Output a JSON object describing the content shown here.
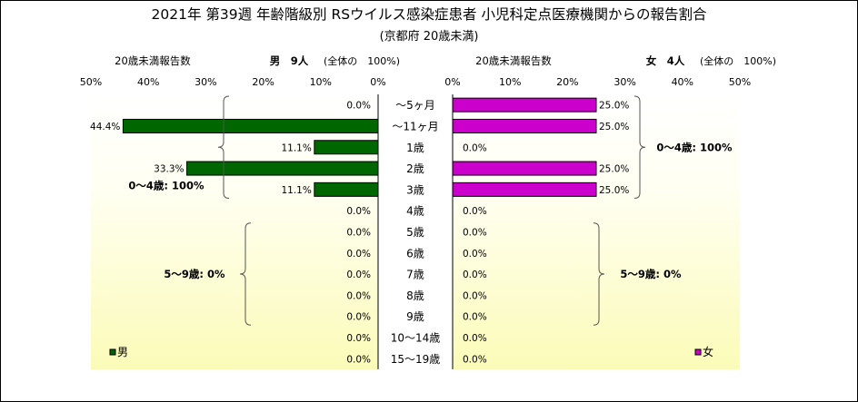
{
  "chart_data": {
    "type": "bar",
    "title": "2021年 第39週 年齢階級別 RSウイルス感染症患者 小児科定点医療機関からの報告割合",
    "subtitle": "(京都府 20歳未満)",
    "categories": [
      "～5ヶ月",
      "～11ヶ月",
      "1歳",
      "2歳",
      "3歳",
      "4歳",
      "5歳",
      "6歳",
      "7歳",
      "8歳",
      "9歳",
      "10～14歳",
      "15～19歳"
    ],
    "x_ticks": [
      "50%",
      "40%",
      "30%",
      "20%",
      "10%",
      "0%"
    ],
    "x_ticks_right": [
      "0%",
      "10%",
      "20%",
      "30%",
      "40%",
      "50%"
    ],
    "xlim": [
      0,
      50
    ],
    "series": [
      {
        "name": "男",
        "header_label": "20歳未満報告数",
        "header_value": "男　9人",
        "header_note": "(全体の　100%)",
        "color": "#006600",
        "values": [
          0,
          44.4,
          11.1,
          33.3,
          11.1,
          0,
          0,
          0,
          0,
          0,
          0,
          0,
          0
        ],
        "value_labels": [
          "0.0%",
          "44.4%",
          "11.1%",
          "33.3%",
          "11.1%",
          "0.0%",
          "0.0%",
          "0.0%",
          "0.0%",
          "0.0%",
          "0.0%",
          "0.0%",
          "0.0%"
        ],
        "groups": [
          {
            "label": "0～4歳: 100%",
            "from": 0,
            "to": 4
          },
          {
            "label": "5～9歳: 0%",
            "from": 6,
            "to": 10
          }
        ]
      },
      {
        "name": "女",
        "header_label": "20歳未満報告数",
        "header_value": "女　4人",
        "header_note": "(全体の　100%)",
        "color": "#cc00cc",
        "values": [
          25,
          25,
          0,
          25,
          25,
          0,
          0,
          0,
          0,
          0,
          0,
          0,
          0
        ],
        "value_labels": [
          "25.0%",
          "25.0%",
          "0.0%",
          "25.0%",
          "25.0%",
          "0.0%",
          "0.0%",
          "0.0%",
          "0.0%",
          "0.0%",
          "0.0%",
          "0.0%",
          "0.0%"
        ],
        "groups": [
          {
            "label": "0～4歳: 100%",
            "from": 0,
            "to": 4
          },
          {
            "label": "5～9歳: 0%",
            "from": 6,
            "to": 10
          }
        ]
      }
    ],
    "legend": [
      {
        "label": "男",
        "color": "#006600"
      },
      {
        "label": "女",
        "color": "#cc00cc"
      }
    ]
  }
}
